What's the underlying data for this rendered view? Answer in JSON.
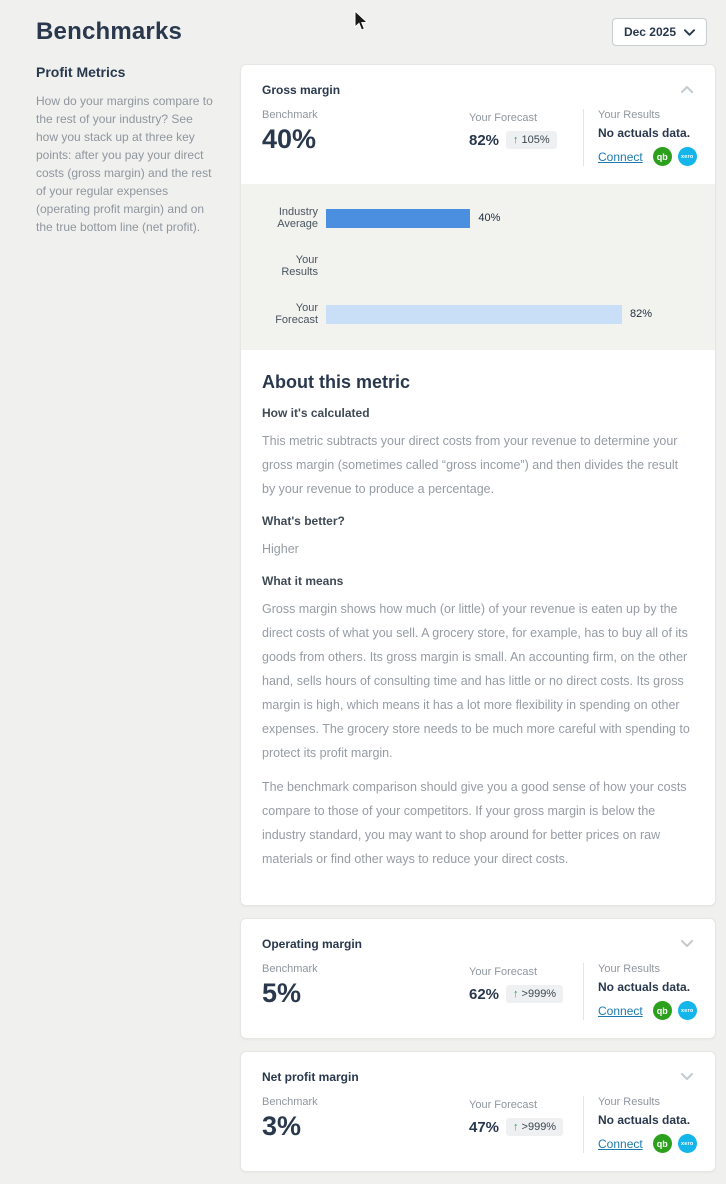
{
  "page": {
    "title": "Benchmarks",
    "period_selector": "Dec 2025"
  },
  "sidebar": {
    "heading": "Profit Metrics",
    "description": "How do your margins compare to the rest of your industry? See how you stack up at three key points: after you pay your direct costs (gross margin) and the rest of your regular expenses (operating profit margin) and on the true bottom line (net profit)."
  },
  "labels": {
    "benchmark": "Benchmark",
    "your_forecast": "Your Forecast",
    "your_results": "Your Results",
    "no_actuals": "No actuals data.",
    "connect": "Connect"
  },
  "icons": {
    "quickbooks_label": "qb",
    "xero_label": "xero"
  },
  "metrics": [
    {
      "name": "Gross margin",
      "benchmark": "40%",
      "forecast": "82%",
      "change": "105%",
      "expanded": true
    },
    {
      "name": "Operating margin",
      "benchmark": "5%",
      "forecast": "62%",
      "change": ">999%",
      "expanded": false
    },
    {
      "name": "Net profit margin",
      "benchmark": "3%",
      "forecast": "47%",
      "change": ">999%",
      "expanded": false
    }
  ],
  "chart_data": {
    "type": "bar",
    "orientation": "horizontal",
    "categories": [
      "Industry Average",
      "Your Results",
      "Your Forecast"
    ],
    "values": [
      40,
      0,
      82
    ],
    "value_labels": [
      "40%",
      "",
      "82%"
    ],
    "bar_colors": [
      "#4a8fe0",
      "",
      "#c9def7"
    ],
    "xlim": [
      0,
      100
    ],
    "grid": false,
    "legend": false
  },
  "about": {
    "title": "About this metric",
    "sections": [
      {
        "heading": "How it's calculated",
        "paragraphs": [
          "This metric subtracts your direct costs from your revenue to determine your gross margin (sometimes called “gross income”) and then divides the result by your revenue to produce a percentage."
        ]
      },
      {
        "heading": "What's better?",
        "paragraphs": [
          "Higher"
        ]
      },
      {
        "heading": "What it means",
        "paragraphs": [
          "Gross margin shows how much (or little) of your revenue is eaten up by the direct costs of what you sell. A grocery store, for example, has to buy all of its goods from others. Its gross margin is small. An accounting firm, on the other hand, sells hours of consulting time and has little or no direct costs. Its gross margin is high, which means it has a lot more flexibility in spending on other expenses. The grocery store needs to be much more careful with spending to protect its profit margin.",
          "The benchmark comparison should give you a good sense of how your costs compare to those of your competitors. If your gross margin is below the industry standard, you may want to shop around for better prices on raw materials or find other ways to reduce your direct costs."
        ]
      }
    ]
  },
  "colors": {
    "heading_navy": "#29384d",
    "body_gray": "#8f969e",
    "bar_blue": "#4a8fe0",
    "bar_light_blue": "#c9def7",
    "quickbooks_green": "#2ca01c",
    "xero_teal": "#13b5ea",
    "link_blue": "#1d7aae",
    "badge_arrow_green": "#1ea35e",
    "page_background": "#f0f0ee"
  }
}
